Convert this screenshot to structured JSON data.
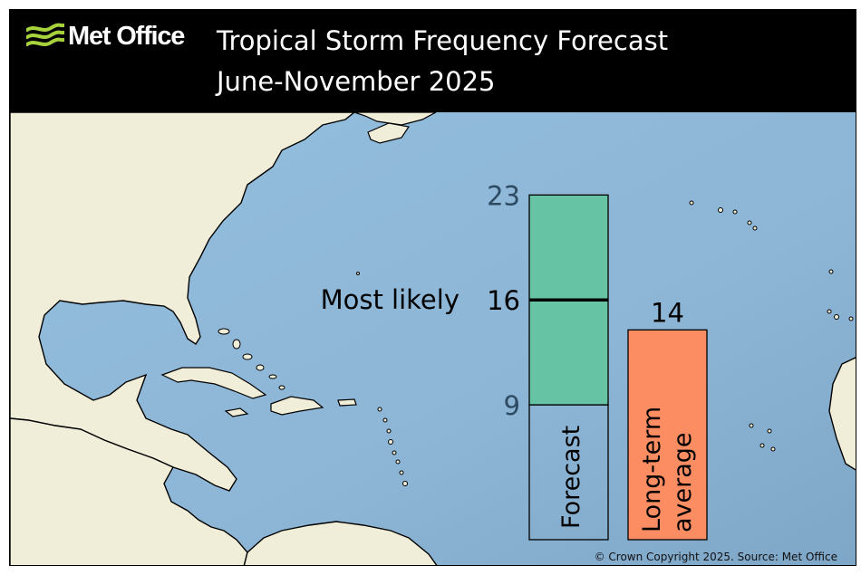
{
  "header": {
    "brand": "Met Office",
    "title_line1": "Tropical Storm Frequency Forecast",
    "title_line2": "June-November 2025"
  },
  "footer": {
    "copyright": "© Crown Copyright 2025. Source: Met Office"
  },
  "colors": {
    "header_bg": "#000000",
    "logo_accent": "#a6d23c",
    "ocean": "#8fb7d6",
    "land": "#f0edd9",
    "forecast_range": "#66c4a5",
    "long_term_average": "#fc8d62"
  },
  "chart_data": {
    "type": "bar",
    "categories": [
      "Forecast",
      "Long-term average"
    ],
    "forecast": {
      "low": 9,
      "high": 23,
      "most_likely": 16
    },
    "long_term_average": 14,
    "annotation": "Most likely",
    "tick_labels": [
      "23",
      "16",
      "9"
    ],
    "value_label": "14"
  }
}
